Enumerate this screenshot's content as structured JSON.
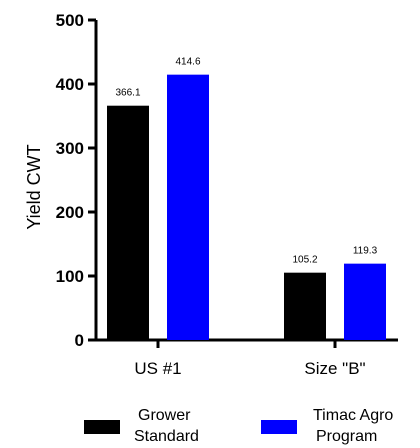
{
  "chart_data": {
    "type": "bar",
    "title": "",
    "xlabel": "",
    "ylabel": "Yield CWT",
    "categories": [
      "US #1",
      "Size \"B\""
    ],
    "series": [
      {
        "name": "Grower Standard",
        "values": [
          366.1,
          105.2
        ],
        "labels": [
          "366.1",
          "105.2"
        ],
        "color": "#000000"
      },
      {
        "name": "Timac Agro Program",
        "values": [
          414.6,
          119.3
        ],
        "labels": [
          "414.6",
          "119.3"
        ],
        "color": "#0000ff"
      }
    ],
    "ylim": [
      0,
      500
    ],
    "yticks": [
      "0",
      "100",
      "200",
      "300",
      "400",
      "500"
    ],
    "grid": false,
    "legend": {
      "placement": "bottom",
      "items": [
        {
          "line1": "Grower",
          "line2": "Standard"
        },
        {
          "line1": "Timac Agro",
          "line2": "Program"
        }
      ]
    }
  }
}
